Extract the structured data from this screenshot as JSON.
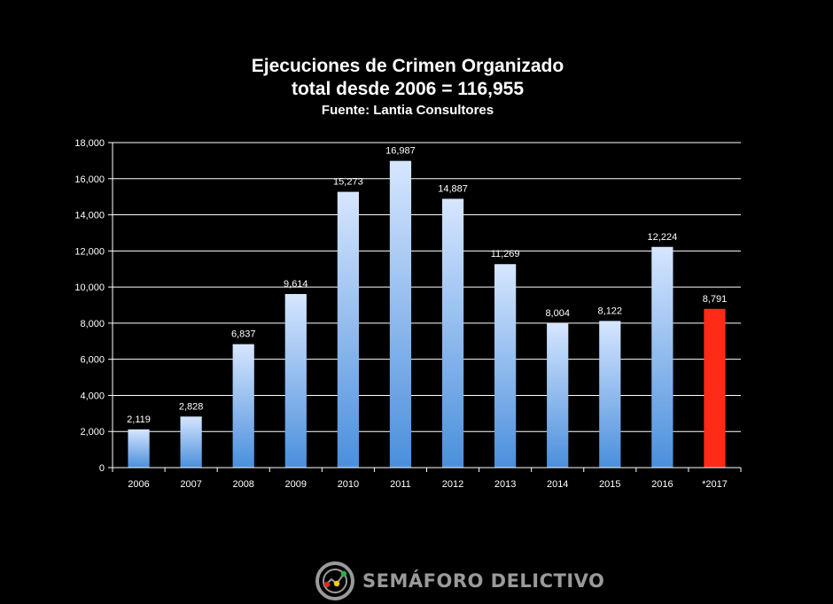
{
  "title_lines": [
    "Ejecuciones de Crimen Organizado",
    "total desde 2006 = 116,955"
  ],
  "subtitle": "Fuente: Lantia Consultores",
  "brand": {
    "name": "SEMÁFORO DELICTIVO",
    "color": "#9a9a9a",
    "icon": "semaforo-logo-icon"
  },
  "colors": {
    "bar_top": "#d6e6ff",
    "bar_bottom": "#4a8fdc",
    "highlight": "#ff2a18",
    "gridline": "#ffffff",
    "background": "#000000"
  },
  "chart_data": {
    "type": "bar",
    "title": "Ejecuciones de Crimen Organizado total desde 2006 = 116,955",
    "subtitle": "Fuente: Lantia Consultores",
    "categories": [
      "2006",
      "2007",
      "2008",
      "2009",
      "2010",
      "2011",
      "2012",
      "2013",
      "2014",
      "2015",
      "2016",
      "*2017"
    ],
    "values": [
      2119,
      2828,
      6837,
      9614,
      15273,
      16987,
      14887,
      11269,
      8004,
      8122,
      12224,
      8791
    ],
    "value_labels": [
      "2,119",
      "2,828",
      "6,837",
      "9,614",
      "15,273",
      "16,987",
      "14,887",
      "11,269",
      "8,004",
      "8,122",
      "12,224",
      "8,791"
    ],
    "highlight_index": 11,
    "ylim": [
      0,
      18000
    ],
    "yticks": [
      0,
      2000,
      4000,
      6000,
      8000,
      10000,
      12000,
      14000,
      16000,
      18000
    ],
    "ytick_labels": [
      "0",
      "2,000",
      "4,000",
      "6,000",
      "8,000",
      "10,000",
      "12,000",
      "14,000",
      "16,000",
      "18,000"
    ],
    "grid": true,
    "xlabel": "",
    "ylabel": "",
    "legend": "none"
  }
}
